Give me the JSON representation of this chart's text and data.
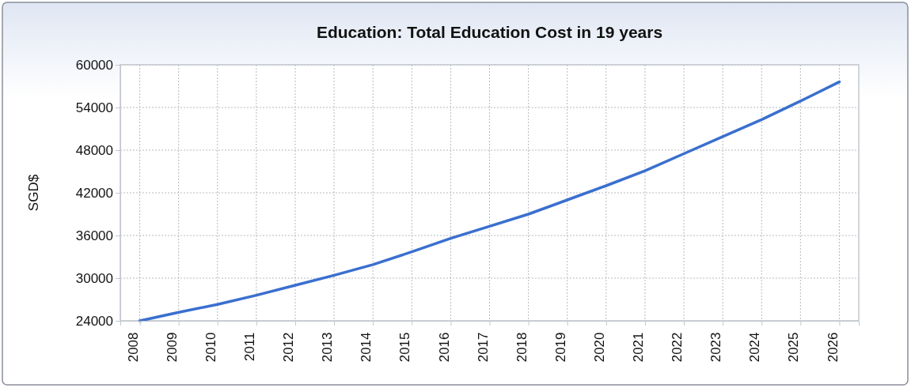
{
  "chart_data": {
    "type": "line",
    "title": "Education: Total Education Cost in 19 years",
    "ylabel": "SGD$",
    "categories": [
      "2008",
      "2009",
      "2010",
      "2011",
      "2012",
      "2013",
      "2014",
      "2015",
      "2016",
      "2017",
      "2018",
      "2019",
      "2020",
      "2021",
      "2022",
      "2023",
      "2024",
      "2025",
      "2026"
    ],
    "series": [
      {
        "color": "#3a6fcf",
        "values": [
          24000,
          25200,
          26300,
          27600,
          29000,
          30400,
          31900,
          33700,
          35600,
          37300,
          39000,
          41000,
          43000,
          45100,
          47500,
          49900,
          52300,
          54900,
          57600
        ]
      }
    ],
    "ylim": [
      24000,
      60000
    ],
    "yticks": [
      24000,
      30000,
      36000,
      42000,
      48000,
      54000,
      60000
    ],
    "grid": true,
    "marker": "none",
    "line_style": "solid"
  }
}
